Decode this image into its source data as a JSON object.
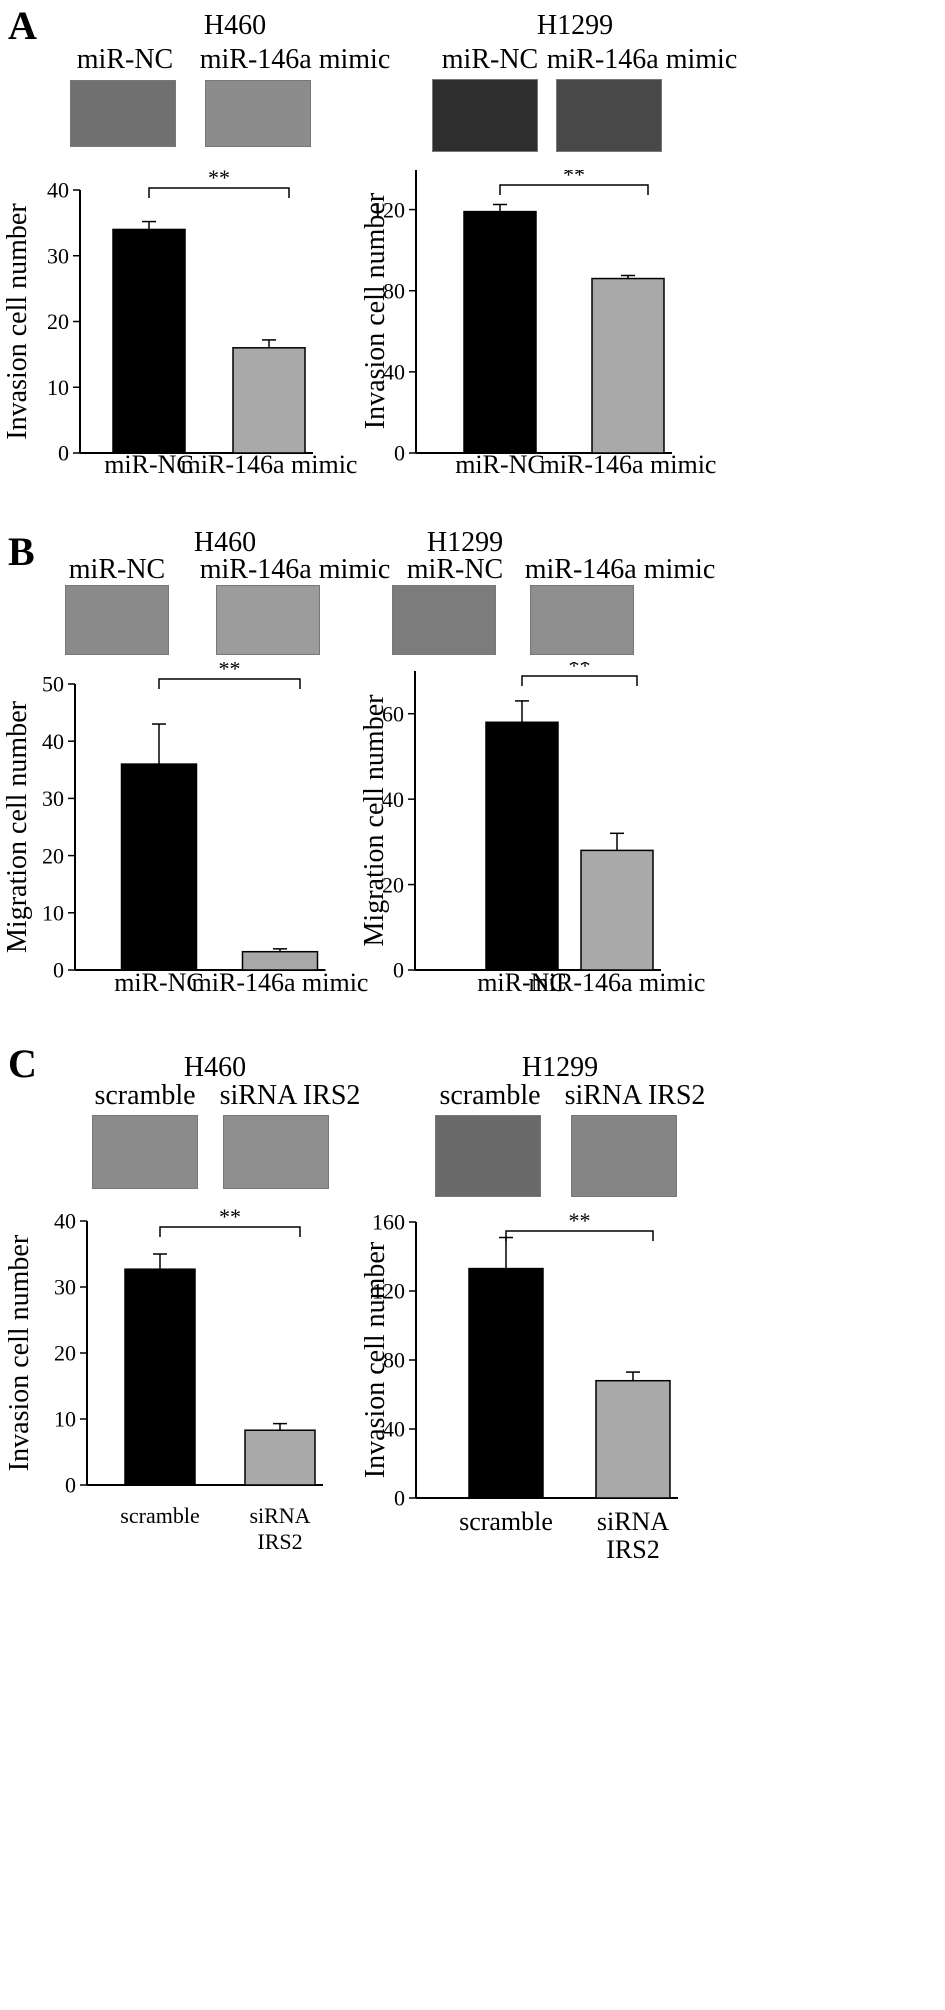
{
  "panels": [
    {
      "letter": "A",
      "groups": [
        {
          "cell_line": "H460",
          "conditions": [
            "miR-NC",
            "miR-146a mimic"
          ]
        },
        {
          "cell_line": "H1299",
          "conditions": [
            "miR-NC",
            "miR-146a mimic"
          ]
        }
      ]
    },
    {
      "letter": "B",
      "groups": [
        {
          "cell_line": "H460",
          "conditions": [
            "miR-NC",
            "miR-146a mimic"
          ]
        },
        {
          "cell_line": "H1299",
          "conditions": [
            "miR-NC",
            "miR-146a mimic"
          ]
        }
      ]
    },
    {
      "letter": "C",
      "groups": [
        {
          "cell_line": "H460",
          "conditions": [
            "scramble",
            "siRNA  IRS2"
          ]
        },
        {
          "cell_line": "H1299",
          "conditions": [
            "scramble",
            "siRNA  IRS2"
          ]
        }
      ]
    }
  ],
  "bar_colors": [
    "#000000",
    "#a9a9a9"
  ],
  "chart_data": [
    {
      "type": "bar",
      "ylabel": "Invasion cell number",
      "ylim": [
        0,
        40
      ],
      "yticks": [
        0,
        10,
        20,
        30,
        40
      ],
      "categories": [
        "miR-NC",
        "miR-146a mimic"
      ],
      "values": [
        34,
        16
      ],
      "errors": [
        1.2,
        1.2
      ],
      "significance": "**"
    },
    {
      "type": "bar",
      "ylabel": "Invasion cell number",
      "ylim": [
        0,
        140
      ],
      "yticks": [
        0,
        40,
        80,
        120
      ],
      "categories": [
        "miR-NC",
        "miR-146a mimic"
      ],
      "values": [
        119,
        86
      ],
      "errors": [
        3.5,
        1.5
      ],
      "significance": "**"
    },
    {
      "type": "bar",
      "ylabel": "Migration cell number",
      "ylim": [
        0,
        50
      ],
      "yticks": [
        0,
        10,
        20,
        30,
        40,
        50
      ],
      "categories": [
        "miR-NC",
        "miR-146a mimic"
      ],
      "values": [
        36,
        3.2
      ],
      "errors": [
        7,
        0.5
      ],
      "significance": "**"
    },
    {
      "type": "bar",
      "ylabel": "Migration cell number",
      "ylim": [
        0,
        70
      ],
      "yticks": [
        0,
        20,
        40,
        60
      ],
      "categories": [
        "miR-NC",
        "miR-146a mimic"
      ],
      "values": [
        58,
        28
      ],
      "errors": [
        5,
        4
      ],
      "significance": "**"
    },
    {
      "type": "bar",
      "ylabel": "Invasion cell number",
      "ylim": [
        0,
        40
      ],
      "yticks": [
        0,
        10,
        20,
        30,
        40
      ],
      "categories": [
        "scramble",
        "siRNA IRS2"
      ],
      "values": [
        32.7,
        8.3
      ],
      "errors": [
        2.3,
        1
      ],
      "significance": "**"
    },
    {
      "type": "bar",
      "ylabel": "Invasion cell number",
      "ylim": [
        0,
        160
      ],
      "yticks": [
        0,
        40,
        80,
        120,
        160
      ],
      "categories": [
        "scramble",
        "siRNA IRS2"
      ],
      "values": [
        133,
        68
      ],
      "errors": [
        18,
        5
      ],
      "significance": "**"
    }
  ]
}
